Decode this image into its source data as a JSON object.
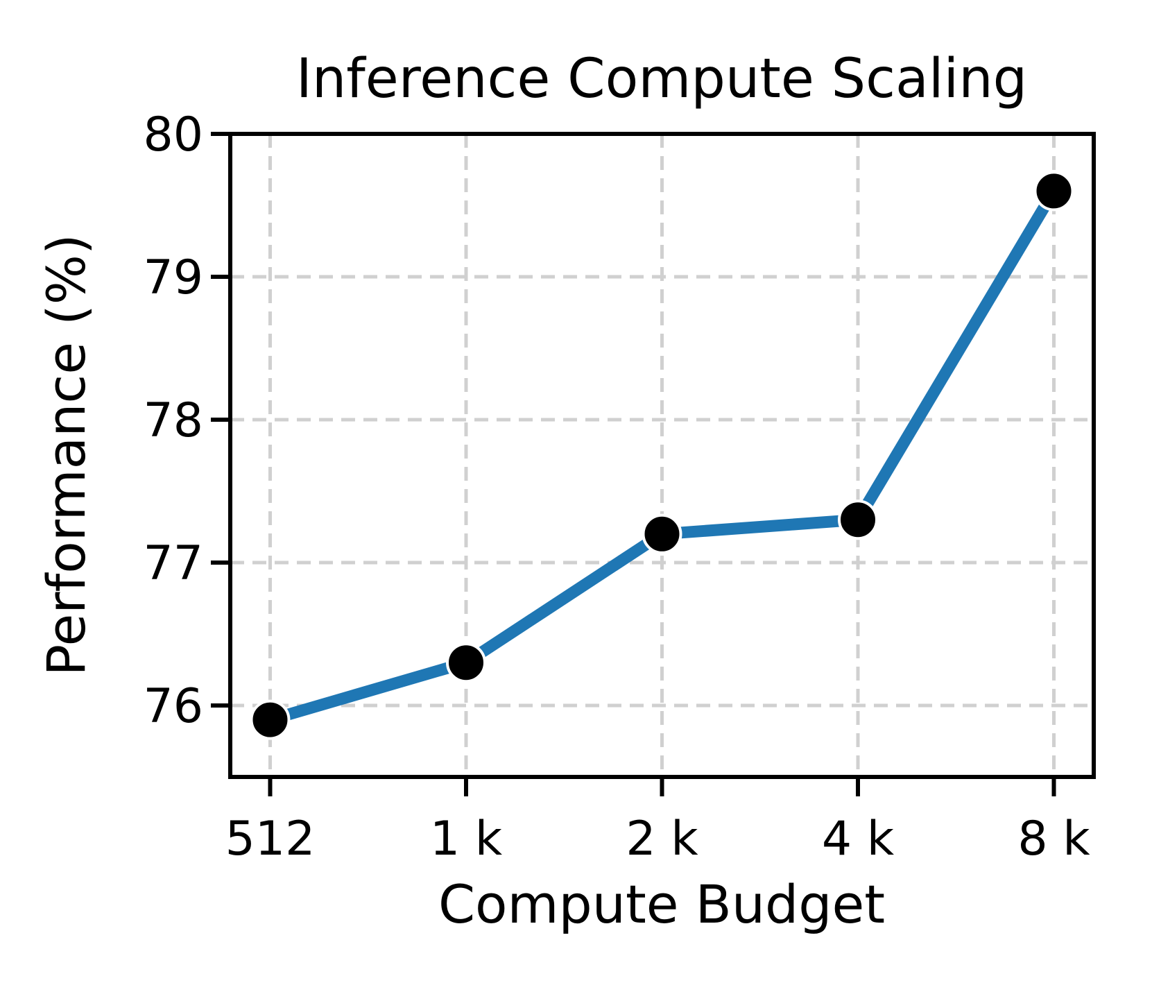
{
  "chart_data": {
    "type": "line",
    "title": "Inference Compute Scaling",
    "xlabel": "Compute Budget",
    "ylabel": "Performance (%)",
    "x_scale": "log2",
    "x": [
      512,
      1024,
      2048,
      4096,
      8192
    ],
    "x_tick_labels": [
      "512",
      "1 k",
      "2 k",
      "4 k",
      "8 k"
    ],
    "series": [
      {
        "name": "performance",
        "values": [
          75.9,
          76.3,
          77.2,
          77.3,
          79.6
        ]
      }
    ],
    "y_ticks": [
      76,
      77,
      78,
      79,
      80
    ],
    "y_tick_labels": [
      "76",
      "77",
      "78",
      "79",
      "80"
    ],
    "ylim": [
      75.5,
      80
    ],
    "grid": true,
    "grid_style": "dashed",
    "legend": "none",
    "colors": {
      "line": "#1f77b4",
      "marker_fill": "#000000",
      "marker_edge": "#ffffff",
      "grid": "#d0d0d0",
      "axis": "#000000",
      "background": "#ffffff"
    }
  }
}
